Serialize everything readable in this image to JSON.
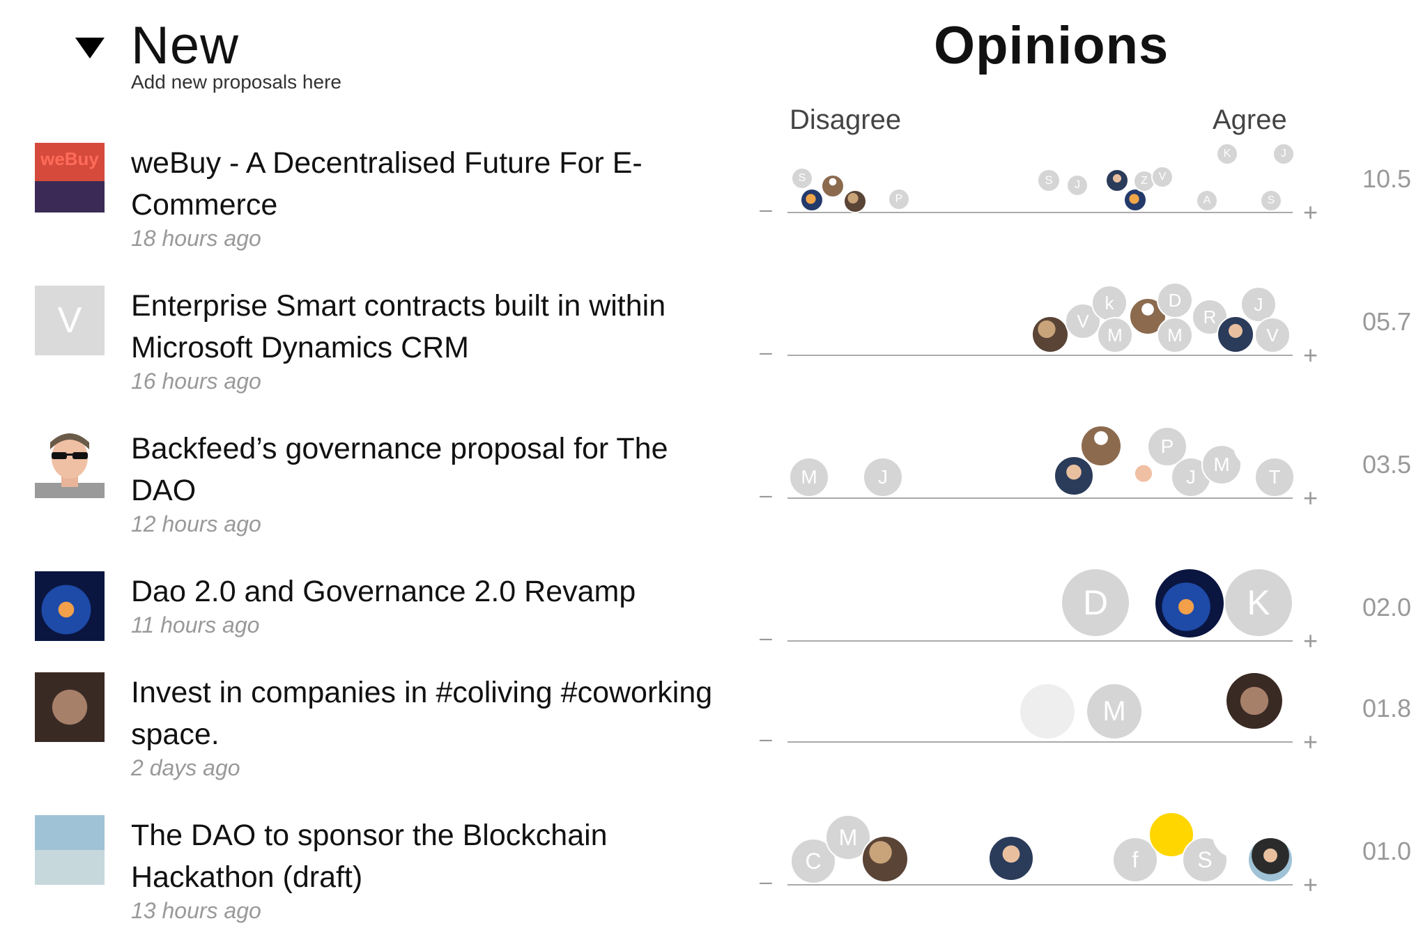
{
  "header": {
    "title": "New",
    "subtitle": "Add new proposals here",
    "opinions_title": "Opinions",
    "disagree_label": "Disagree",
    "agree_label": "Agree"
  },
  "scale": {
    "minus": "–",
    "plus": "+"
  },
  "proposals": [
    {
      "title": "weBuy - A Decentralised Future For E-Commerce",
      "time": "18 hours ago",
      "score": "10.5",
      "thumb_text": "weBuy",
      "voters": [
        {
          "letter": "S"
        },
        {
          "letter": ""
        },
        {
          "letter": ""
        },
        {
          "letter": ""
        },
        {
          "letter": "P"
        },
        {
          "letter": "S"
        },
        {
          "letter": "J"
        },
        {
          "letter": ""
        },
        {
          "letter": ""
        },
        {
          "letter": "Z"
        },
        {
          "letter": "V"
        },
        {
          "letter": "K"
        },
        {
          "letter": "J"
        },
        {
          "letter": "A"
        },
        {
          "letter": "S"
        }
      ]
    },
    {
      "title": "Enterprise Smart contracts built in within Microsoft Dynamics CRM",
      "time": "16 hours ago",
      "score": "05.7",
      "thumb_text": "V",
      "voters": [
        {
          "letter": ""
        },
        {
          "letter": "V"
        },
        {
          "letter": "k"
        },
        {
          "letter": "M"
        },
        {
          "letter": ""
        },
        {
          "letter": "D"
        },
        {
          "letter": "M"
        },
        {
          "letter": "R"
        },
        {
          "letter": ""
        },
        {
          "letter": "J"
        },
        {
          "letter": "V"
        }
      ]
    },
    {
      "title": "Backfeed’s governance proposal for The DAO",
      "time": "12 hours ago",
      "score": "03.5",
      "voters": [
        {
          "letter": "M"
        },
        {
          "letter": "J"
        },
        {
          "letter": ""
        },
        {
          "letter": ""
        },
        {
          "letter": ""
        },
        {
          "letter": "P"
        },
        {
          "letter": "J"
        },
        {
          "letter": "M"
        },
        {
          "letter": ""
        },
        {
          "letter": "T"
        }
      ]
    },
    {
      "title": "Dao 2.0 and Governance 2.0 Revamp",
      "time": "11 hours ago",
      "score": "02.0",
      "voters": [
        {
          "letter": "D"
        },
        {
          "letter": ""
        },
        {
          "letter": "K"
        }
      ]
    },
    {
      "title": "Invest in companies in #coliving #coworking space.",
      "time": "2 days ago",
      "score": "01.8",
      "voters": [
        {
          "letter": ""
        },
        {
          "letter": "M"
        },
        {
          "letter": ""
        },
        {
          "letter": ""
        }
      ]
    },
    {
      "title": "The DAO to sponsor the Blockchain Hackathon (draft)",
      "time": "13 hours ago",
      "score": "01.0",
      "voters": [
        {
          "letter": "C"
        },
        {
          "letter": "M"
        },
        {
          "letter": ""
        },
        {
          "letter": ""
        },
        {
          "letter": "f"
        },
        {
          "letter": ""
        },
        {
          "letter": "S"
        },
        {
          "letter": ""
        },
        {
          "letter": ""
        }
      ]
    }
  ],
  "colors": {
    "score": "#999999",
    "avatar_placeholder": "#d5d5d5"
  }
}
